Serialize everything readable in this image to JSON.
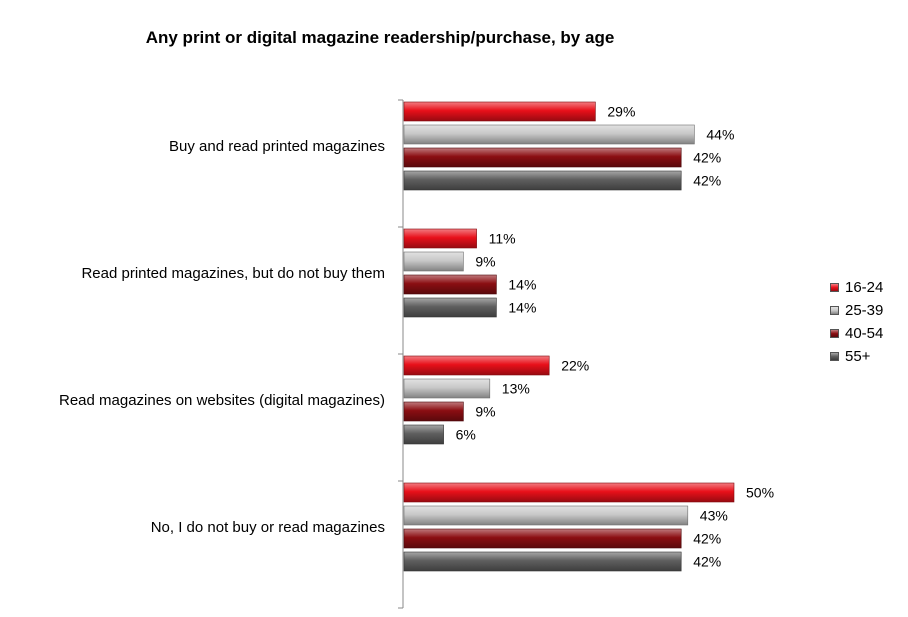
{
  "chart_data": {
    "type": "bar",
    "orientation": "horizontal",
    "title": "Any print or digital magazine readership/purchase, by age",
    "categories": [
      "Buy and read printed magazines",
      "Read printed magazines, but do not buy them",
      "Read magazines on websites (digital magazines)",
      "No, I do not buy or read magazines"
    ],
    "series": [
      {
        "name": "16-24",
        "color": "#e8101a",
        "values": [
          29,
          11,
          22,
          50
        ]
      },
      {
        "name": "25-39",
        "color": "#c8c8c8",
        "values": [
          44,
          9,
          13,
          43
        ]
      },
      {
        "name": "40-54",
        "color": "#8b0e12",
        "values": [
          42,
          14,
          9,
          42
        ]
      },
      {
        "name": "55+",
        "color": "#5f5f5f",
        "values": [
          42,
          14,
          6,
          42
        ]
      }
    ],
    "value_suffix": "%",
    "xlim": [
      0,
      60
    ],
    "grid": false,
    "legend_position": "right"
  }
}
